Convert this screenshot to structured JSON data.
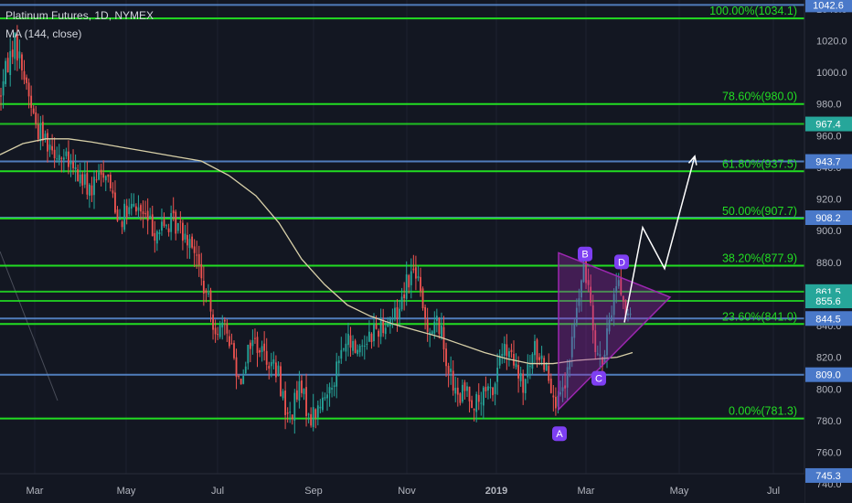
{
  "header": {
    "symbol_line": "Platinum Futures, 1D, NYMEX",
    "indicator_line": "MA (144, close)"
  },
  "colors": {
    "background": "#131722",
    "up": "#26a69a",
    "down": "#ef5350",
    "fib_line": "#22dd22",
    "horizontal_blue": "#5b8fd8",
    "ma_line": "#d8d0a8",
    "triangle": "#9c27b0",
    "label_box_blue": "#4a79c9",
    "label_box_green": "#26a69a",
    "axis_text": "#b2b5be",
    "arrow": "#ffffff"
  },
  "chart_data": {
    "type": "candlestick",
    "title": "Platinum Futures, 1D, NYMEX",
    "ylim": [
      734,
      1045
    ],
    "x_tick_labels": [
      "Mar",
      "May",
      "Jul",
      "Sep",
      "Nov",
      "2019",
      "Mar",
      "May",
      "Jul"
    ],
    "y_tick_labels": [
      740,
      760,
      780,
      800,
      820,
      840,
      860,
      880,
      900,
      920,
      940,
      960,
      980,
      1000,
      1020,
      1040
    ],
    "fib_levels": [
      {
        "label": "100.00%(1034.1)",
        "value": 1034.1
      },
      {
        "label": "78.60%(980.0)",
        "value": 980.0
      },
      {
        "label": "61.80%(937.5)",
        "value": 937.5
      },
      {
        "label": "50.00%(907.7)",
        "value": 907.7
      },
      {
        "label": "38.20%(877.9)",
        "value": 877.9
      },
      {
        "label": "23.60%(841.0)",
        "value": 841.0
      },
      {
        "label": "0.00%(781.3)",
        "value": 781.3
      }
    ],
    "horizontal_lines": [
      {
        "value": 1042.6,
        "color": "blue"
      },
      {
        "value": 967.4,
        "color": "green"
      },
      {
        "value": 943.7,
        "color": "blue"
      },
      {
        "value": 908.2,
        "color": "blue"
      },
      {
        "value": 861.5,
        "color": "green"
      },
      {
        "value": 855.6,
        "color": "green"
      },
      {
        "value": 844.5,
        "color": "blue"
      },
      {
        "value": 809.0,
        "color": "blue"
      },
      {
        "value": 745.3,
        "color": "blue"
      }
    ],
    "price_labels": [
      {
        "text": "1042.6",
        "value": 1042.6,
        "color": "blue"
      },
      {
        "text": "967.4",
        "value": 967.4,
        "color": "green"
      },
      {
        "text": "943.7",
        "value": 943.7,
        "color": "blue"
      },
      {
        "text": "908.2",
        "value": 908.2,
        "color": "blue"
      },
      {
        "text": "861.5",
        "value": 861.5,
        "color": "green"
      },
      {
        "text": "855.6",
        "value": 855.6,
        "color": "green"
      },
      {
        "text": "844.5",
        "value": 844.5,
        "color": "blue"
      },
      {
        "text": "809.0",
        "value": 809.0,
        "color": "blue"
      },
      {
        "text": "745.3",
        "value": 745.3,
        "color": "blue"
      }
    ],
    "price_waypoints": [
      [
        0,
        985
      ],
      [
        8,
        1005
      ],
      [
        16,
        1020
      ],
      [
        28,
        995
      ],
      [
        40,
        965
      ],
      [
        55,
        955
      ],
      [
        70,
        945
      ],
      [
        85,
        935
      ],
      [
        100,
        925
      ],
      [
        115,
        940
      ],
      [
        130,
        908
      ],
      [
        150,
        915
      ],
      [
        170,
        900
      ],
      [
        190,
        905
      ],
      [
        210,
        895
      ],
      [
        222,
        865
      ],
      [
        235,
        840
      ],
      [
        250,
        835
      ],
      [
        262,
        805
      ],
      [
        275,
        832
      ],
      [
        290,
        822
      ],
      [
        305,
        808
      ],
      [
        315,
        780
      ],
      [
        328,
        800
      ],
      [
        340,
        782
      ],
      [
        352,
        790
      ],
      [
        365,
        808
      ],
      [
        378,
        830
      ],
      [
        390,
        825
      ],
      [
        405,
        835
      ],
      [
        420,
        842
      ],
      [
        435,
        848
      ],
      [
        445,
        870
      ],
      [
        455,
        875
      ],
      [
        462,
        850
      ],
      [
        470,
        838
      ],
      [
        480,
        842
      ],
      [
        490,
        815
      ],
      [
        500,
        792
      ],
      [
        510,
        800
      ],
      [
        520,
        790
      ],
      [
        530,
        795
      ],
      [
        540,
        800
      ],
      [
        548,
        825
      ],
      [
        560,
        818
      ],
      [
        572,
        800
      ],
      [
        585,
        825
      ],
      [
        598,
        815
      ],
      [
        610,
        788
      ],
      [
        620,
        805
      ],
      [
        628,
        840
      ],
      [
        638,
        875
      ],
      [
        645,
        865
      ],
      [
        652,
        825
      ],
      [
        660,
        815
      ],
      [
        668,
        848
      ],
      [
        676,
        872
      ],
      [
        684,
        850
      ],
      [
        690,
        842
      ]
    ],
    "ma_144": [
      [
        0,
        948
      ],
      [
        25,
        955
      ],
      [
        50,
        958
      ],
      [
        75,
        958
      ],
      [
        100,
        956
      ],
      [
        130,
        953
      ],
      [
        160,
        950
      ],
      [
        190,
        947
      ],
      [
        220,
        944
      ],
      [
        250,
        935
      ],
      [
        280,
        922
      ],
      [
        305,
        905
      ],
      [
        330,
        882
      ],
      [
        355,
        866
      ],
      [
        380,
        853
      ],
      [
        405,
        846
      ],
      [
        430,
        841
      ],
      [
        455,
        837
      ],
      [
        480,
        833
      ],
      [
        505,
        828
      ],
      [
        530,
        823
      ],
      [
        555,
        819
      ],
      [
        580,
        816
      ],
      [
        605,
        816
      ],
      [
        630,
        818
      ],
      [
        655,
        819
      ],
      [
        675,
        820
      ],
      [
        692,
        823
      ]
    ],
    "triangle": {
      "points": [
        [
          611,
          886
        ],
        [
          733,
          858
        ],
        [
          611,
          787
        ]
      ]
    },
    "wave_points": [
      {
        "label": "A",
        "x": 612,
        "value": 785
      },
      {
        "label": "B",
        "x": 640,
        "value": 876
      },
      {
        "label": "C",
        "x": 655,
        "value": 820
      },
      {
        "label": "D",
        "x": 680,
        "value": 871
      }
    ],
    "projection_arrow": [
      [
        683,
        842
      ],
      [
        703,
        902
      ],
      [
        727,
        876
      ],
      [
        760,
        947
      ]
    ]
  }
}
